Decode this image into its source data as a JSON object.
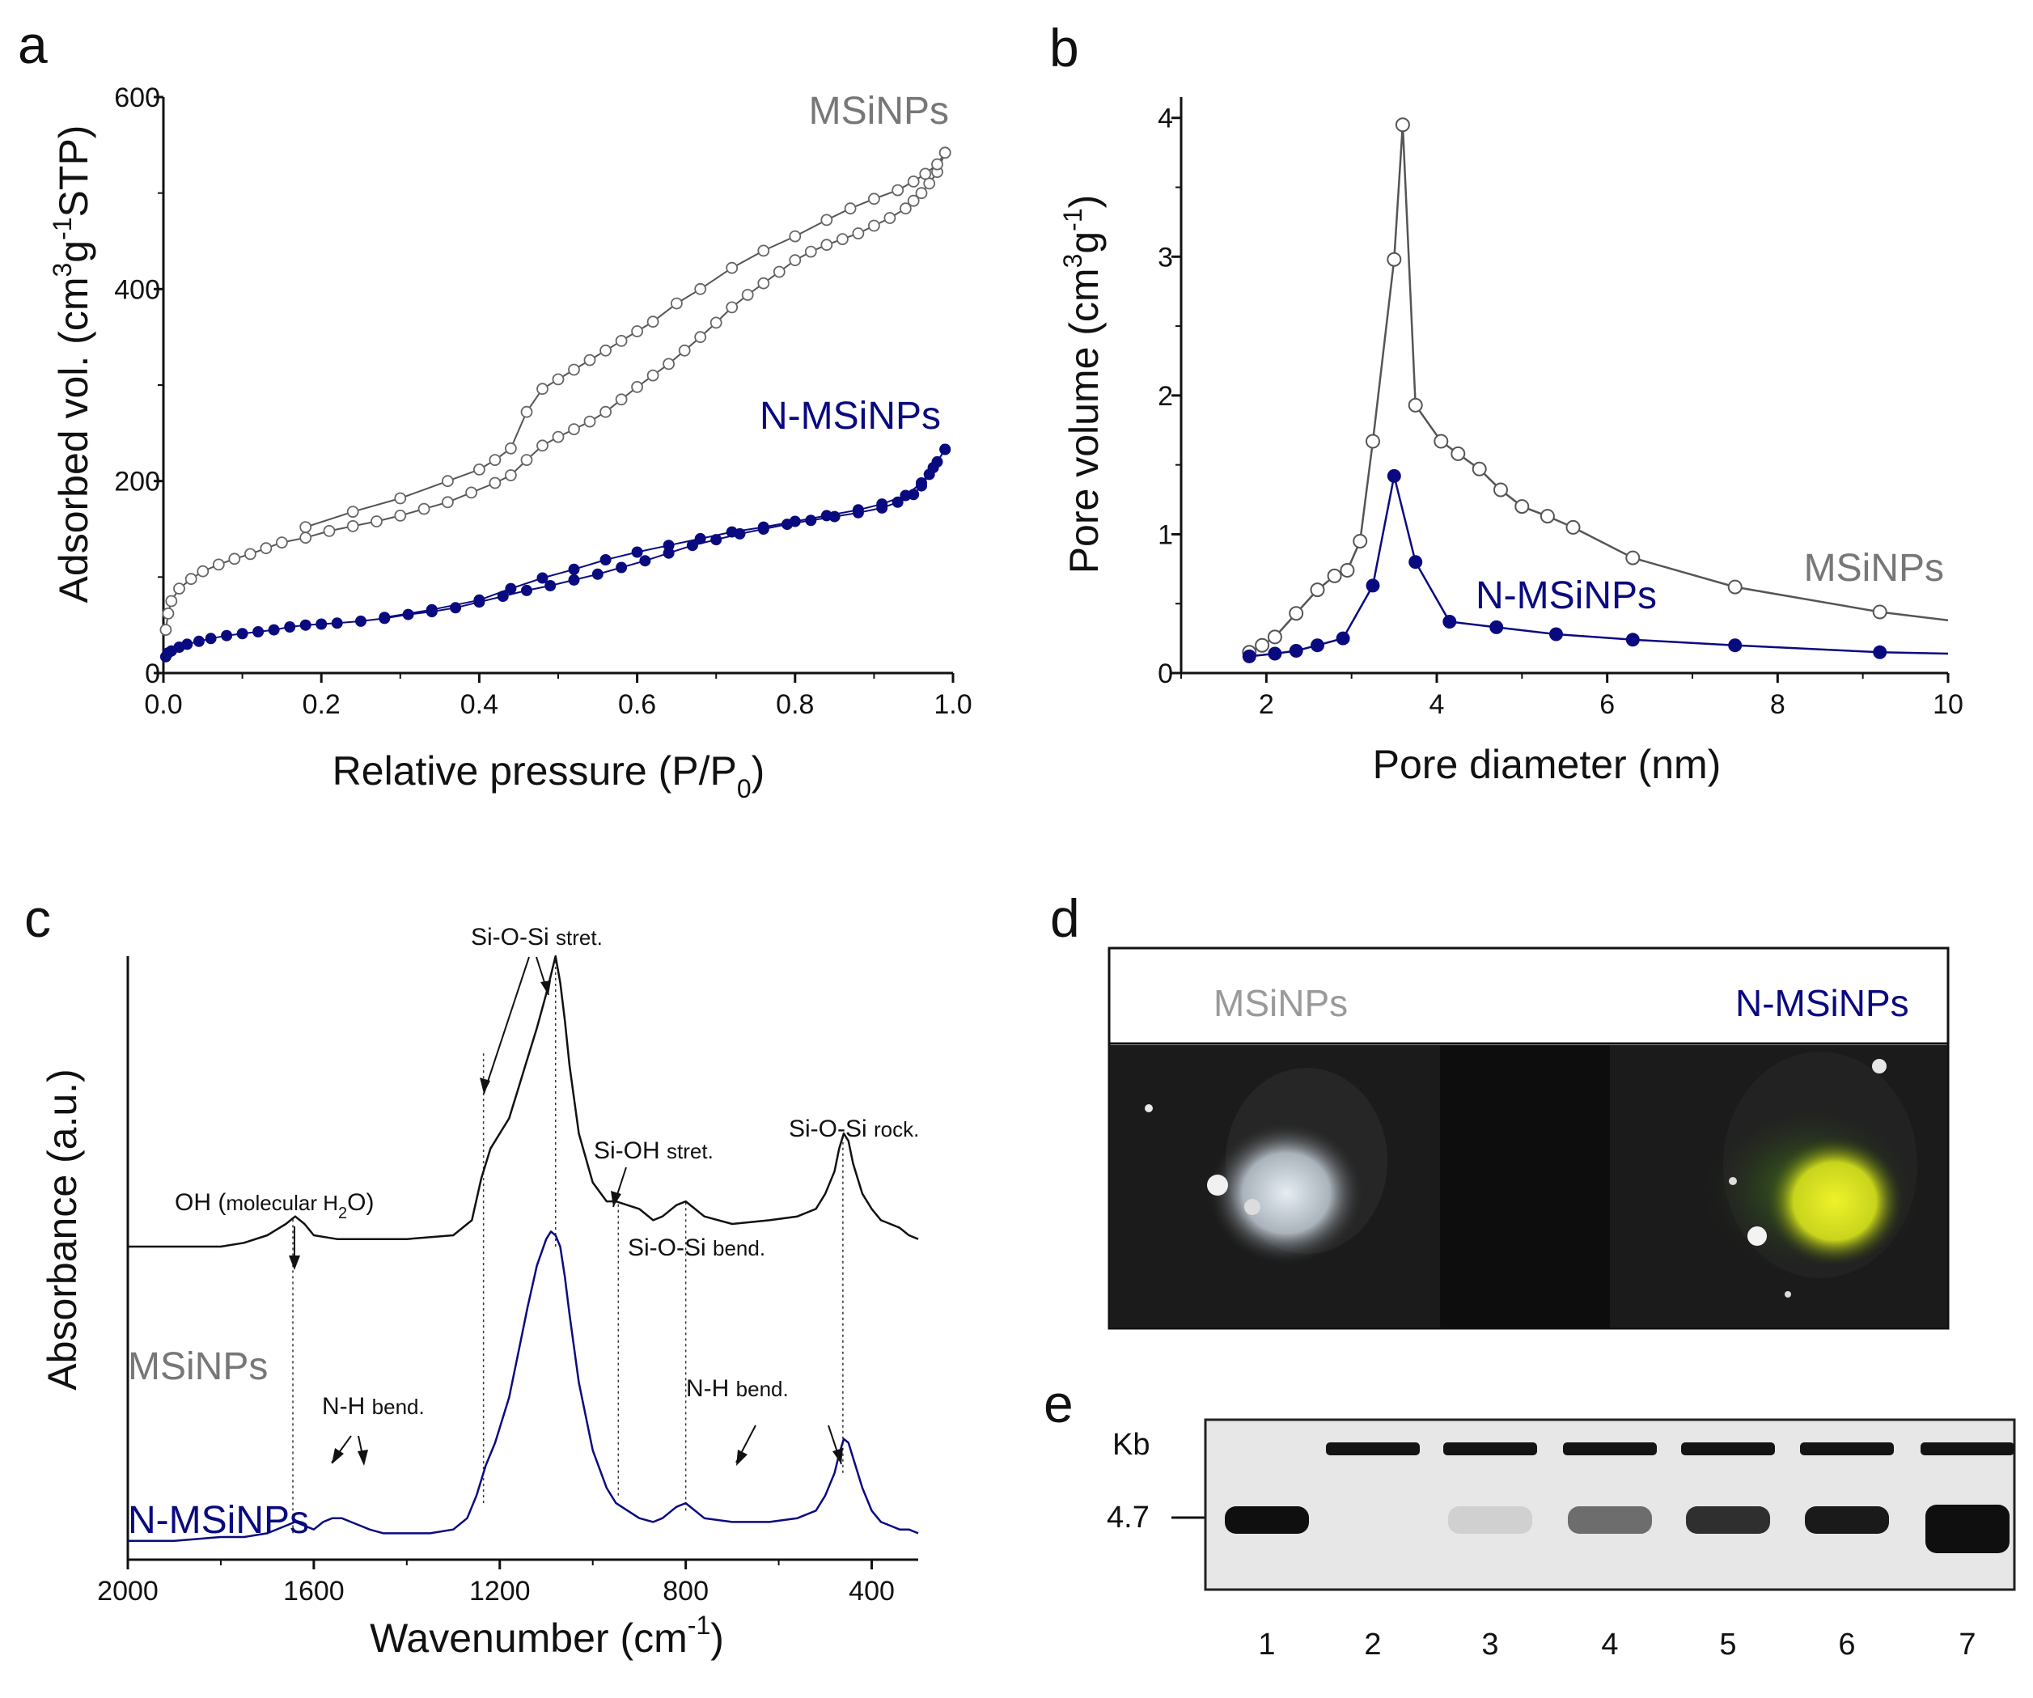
{
  "colors": {
    "msinp": "#777777",
    "nmsinp": "#0a0a80",
    "axis": "#111111",
    "gel_bg": "#e7e7e7",
    "band": "#141414",
    "nanoparticles_white": "#dfe6ec",
    "nanoparticles_yellow": "#e4ec1c"
  },
  "panels": {
    "a": {
      "label": "a"
    },
    "b": {
      "label": "b"
    },
    "c": {
      "label": "c"
    },
    "d": {
      "label": "d",
      "left_label": "MSiNPs",
      "right_label": "N-MSiNPs"
    },
    "e": {
      "label": "e",
      "kb_label": "Kb",
      "marker_label": "4.7",
      "lanes": [
        "1",
        "2",
        "3",
        "4",
        "5",
        "6",
        "7"
      ],
      "band_intensity": [
        1.0,
        0.0,
        0.08,
        0.55,
        0.85,
        0.95,
        1.0
      ]
    }
  },
  "chart_data": [
    {
      "id": "a",
      "type": "scatter",
      "title": "",
      "xlabel": "Relative pressure (P/P",
      "xlabel_sub": "0",
      "xlabel_end": ")",
      "ylabel_parts": [
        "Adsorbed vol. (cm",
        "3",
        "g",
        "-1",
        "STP)"
      ],
      "xlim": [
        0,
        1.0
      ],
      "ylim": [
        0,
        600
      ],
      "xticks": [
        "0.0",
        "0.2",
        "0.4",
        "0.6",
        "0.8",
        "1.0"
      ],
      "yticks": [
        "0",
        "200",
        "400",
        "600"
      ],
      "series": [
        {
          "name": "MSiNPs",
          "marker": "open-circle",
          "adsorption": [
            [
              0.003,
              45
            ],
            [
              0.006,
              62
            ],
            [
              0.01,
              75
            ],
            [
              0.02,
              88
            ],
            [
              0.035,
              98
            ],
            [
              0.05,
              106
            ],
            [
              0.07,
              113
            ],
            [
              0.09,
              119
            ],
            [
              0.11,
              124
            ],
            [
              0.13,
              130
            ],
            [
              0.15,
              136
            ],
            [
              0.18,
              141
            ],
            [
              0.21,
              148
            ],
            [
              0.24,
              153
            ],
            [
              0.27,
              158
            ],
            [
              0.3,
              164
            ],
            [
              0.33,
              171
            ],
            [
              0.36,
              178
            ],
            [
              0.39,
              188
            ],
            [
              0.42,
              198
            ],
            [
              0.44,
              206
            ],
            [
              0.46,
              222
            ],
            [
              0.48,
              237
            ],
            [
              0.5,
              246
            ],
            [
              0.52,
              254
            ],
            [
              0.54,
              262
            ],
            [
              0.56,
              272
            ],
            [
              0.58,
              285
            ],
            [
              0.6,
              298
            ],
            [
              0.62,
              310
            ],
            [
              0.64,
              322
            ],
            [
              0.66,
              336
            ],
            [
              0.68,
              350
            ],
            [
              0.7,
              365
            ],
            [
              0.72,
              381
            ],
            [
              0.74,
              394
            ],
            [
              0.76,
              406
            ],
            [
              0.78,
              418
            ],
            [
              0.8,
              430
            ],
            [
              0.82,
              439
            ],
            [
              0.84,
              446
            ],
            [
              0.86,
              452
            ],
            [
              0.88,
              458
            ],
            [
              0.9,
              466
            ],
            [
              0.92,
              474
            ],
            [
              0.94,
              484
            ],
            [
              0.95,
              492
            ],
            [
              0.96,
              500
            ],
            [
              0.97,
              510
            ],
            [
              0.98,
              522
            ],
            [
              0.99,
              542
            ]
          ],
          "desorption": [
            [
              0.99,
              542
            ],
            [
              0.98,
              530
            ],
            [
              0.965,
              520
            ],
            [
              0.95,
              512
            ],
            [
              0.93,
              503
            ],
            [
              0.9,
              494
            ],
            [
              0.87,
              484
            ],
            [
              0.84,
              472
            ],
            [
              0.8,
              455
            ],
            [
              0.76,
              440
            ],
            [
              0.72,
              422
            ],
            [
              0.68,
              400
            ],
            [
              0.65,
              385
            ],
            [
              0.62,
              366
            ],
            [
              0.6,
              356
            ],
            [
              0.58,
              346
            ],
            [
              0.56,
              336
            ],
            [
              0.54,
              326
            ],
            [
              0.52,
              316
            ],
            [
              0.5,
              306
            ],
            [
              0.48,
              296
            ],
            [
              0.46,
              272
            ],
            [
              0.44,
              234
            ],
            [
              0.42,
              222
            ],
            [
              0.4,
              212
            ],
            [
              0.36,
              200
            ],
            [
              0.3,
              182
            ],
            [
              0.24,
              168
            ],
            [
              0.18,
              152
            ]
          ]
        },
        {
          "name": "N-MSiNPs",
          "marker": "filled-circle",
          "adsorption": [
            [
              0.003,
              17
            ],
            [
              0.006,
              21
            ],
            [
              0.01,
              23
            ],
            [
              0.02,
              27
            ],
            [
              0.03,
              30
            ],
            [
              0.045,
              33
            ],
            [
              0.06,
              36
            ],
            [
              0.08,
              39
            ],
            [
              0.1,
              41
            ],
            [
              0.12,
              43
            ],
            [
              0.14,
              45
            ],
            [
              0.16,
              48
            ],
            [
              0.18,
              50
            ],
            [
              0.2,
              51
            ],
            [
              0.22,
              52
            ],
            [
              0.25,
              54
            ],
            [
              0.28,
              57
            ],
            [
              0.31,
              61
            ],
            [
              0.34,
              64
            ],
            [
              0.37,
              68
            ],
            [
              0.4,
              74
            ],
            [
              0.43,
              80
            ],
            [
              0.46,
              86
            ],
            [
              0.49,
              91
            ],
            [
              0.52,
              97
            ],
            [
              0.55,
              103
            ],
            [
              0.58,
              110
            ],
            [
              0.61,
              117
            ],
            [
              0.64,
              125
            ],
            [
              0.67,
              133
            ],
            [
              0.7,
              139
            ],
            [
              0.73,
              145
            ],
            [
              0.76,
              150
            ],
            [
              0.79,
              155
            ],
            [
              0.82,
              159
            ],
            [
              0.85,
              163
            ],
            [
              0.88,
              167
            ],
            [
              0.91,
              172
            ],
            [
              0.93,
              178
            ],
            [
              0.95,
              186
            ],
            [
              0.96,
              195
            ],
            [
              0.97,
              207
            ],
            [
              0.98,
              220
            ],
            [
              0.99,
              233
            ]
          ],
          "desorption": [
            [
              0.99,
              233
            ],
            [
              0.975,
              214
            ],
            [
              0.96,
              198
            ],
            [
              0.94,
              185
            ],
            [
              0.91,
              176
            ],
            [
              0.88,
              170
            ],
            [
              0.84,
              164
            ],
            [
              0.8,
              158
            ],
            [
              0.76,
              152
            ],
            [
              0.72,
              147
            ],
            [
              0.68,
              140
            ],
            [
              0.64,
              133
            ],
            [
              0.6,
              126
            ],
            [
              0.56,
              118
            ],
            [
              0.52,
              108
            ],
            [
              0.48,
              99
            ],
            [
              0.44,
              88
            ],
            [
              0.4,
              76
            ],
            [
              0.34,
              66
            ],
            [
              0.28,
              58
            ]
          ]
        }
      ]
    },
    {
      "id": "b",
      "type": "line",
      "title": "",
      "xlabel": "Pore diameter (nm)",
      "ylabel_parts": [
        "Pore volume (cm",
        "3",
        "g",
        "-1",
        ")"
      ],
      "xlim": [
        1,
        10
      ],
      "ylim": [
        0,
        4.15
      ],
      "xticks": [
        "2",
        "4",
        "6",
        "8",
        "10"
      ],
      "yticks": [
        "0",
        "1",
        "2",
        "3",
        "4"
      ],
      "series": [
        {
          "name": "MSiNPs",
          "marker": "open-circle",
          "x": [
            1.8,
            1.95,
            2.1,
            2.35,
            2.6,
            2.8,
            2.95,
            3.1,
            3.25,
            3.5,
            3.6,
            3.75,
            4.05,
            4.25,
            4.5,
            4.75,
            5.0,
            5.3,
            5.6,
            6.3,
            7.5,
            9.2,
            10.0
          ],
          "y": [
            0.15,
            0.2,
            0.26,
            0.43,
            0.6,
            0.7,
            0.74,
            0.95,
            1.67,
            2.98,
            3.95,
            1.93,
            1.67,
            1.58,
            1.47,
            1.32,
            1.2,
            1.13,
            1.05,
            0.83,
            0.62,
            0.44,
            0.38
          ]
        },
        {
          "name": "N-MSiNPs",
          "marker": "filled-circle",
          "x": [
            1.8,
            2.1,
            2.35,
            2.6,
            2.9,
            3.25,
            3.5,
            3.75,
            4.15,
            4.7,
            5.4,
            6.3,
            7.5,
            9.2,
            10.0
          ],
          "y": [
            0.12,
            0.14,
            0.16,
            0.2,
            0.25,
            0.63,
            1.42,
            0.8,
            0.37,
            0.33,
            0.28,
            0.24,
            0.2,
            0.15,
            0.14
          ]
        }
      ]
    },
    {
      "id": "c",
      "type": "line",
      "title": "",
      "xlabel": "Wavenumber (cm",
      "xlabel_sup": "-1",
      "xlabel_end": ")",
      "ylabel": "Absorbance (a.u.)",
      "xlim": [
        2000,
        300
      ],
      "ylim": [
        -0.05,
        1.55
      ],
      "xticks": [
        "2000",
        "1600",
        "1200",
        "800",
        "400"
      ],
      "series": [
        {
          "name": "MSiNPs",
          "x": [
            2000,
            1900,
            1800,
            1750,
            1700,
            1660,
            1640,
            1620,
            1600,
            1550,
            1500,
            1400,
            1300,
            1260,
            1240,
            1220,
            1200,
            1180,
            1160,
            1140,
            1120,
            1100,
            1090,
            1080,
            1070,
            1060,
            1050,
            1030,
            1000,
            970,
            950,
            900,
            870,
            850,
            820,
            800,
            780,
            760,
            700,
            620,
            560,
            520,
            500,
            480,
            470,
            460,
            450,
            440,
            420,
            400,
            380,
            360,
            340,
            320,
            300
          ],
          "y": [
            0.78,
            0.78,
            0.78,
            0.79,
            0.81,
            0.84,
            0.86,
            0.84,
            0.81,
            0.8,
            0.8,
            0.8,
            0.81,
            0.85,
            0.96,
            1.04,
            1.08,
            1.12,
            1.2,
            1.28,
            1.36,
            1.45,
            1.5,
            1.55,
            1.48,
            1.38,
            1.26,
            1.08,
            0.95,
            0.9,
            0.9,
            0.88,
            0.85,
            0.86,
            0.89,
            0.9,
            0.88,
            0.86,
            0.84,
            0.85,
            0.86,
            0.88,
            0.92,
            0.98,
            1.04,
            1.08,
            1.06,
            1.0,
            0.92,
            0.88,
            0.85,
            0.84,
            0.83,
            0.81,
            0.8
          ]
        },
        {
          "name": "N-MSiNPs",
          "x": [
            2000,
            1900,
            1800,
            1750,
            1700,
            1660,
            1640,
            1620,
            1600,
            1580,
            1560,
            1540,
            1520,
            1500,
            1480,
            1450,
            1400,
            1350,
            1300,
            1270,
            1250,
            1230,
            1210,
            1200,
            1180,
            1160,
            1140,
            1120,
            1100,
            1090,
            1080,
            1070,
            1060,
            1050,
            1030,
            1000,
            970,
            950,
            900,
            870,
            850,
            820,
            800,
            780,
            760,
            700,
            620,
            560,
            520,
            500,
            480,
            470,
            460,
            450,
            440,
            420,
            400,
            380,
            360,
            340,
            320,
            300
          ],
          "y": [
            0.0,
            0.0,
            0.01,
            0.01,
            0.02,
            0.04,
            0.05,
            0.04,
            0.03,
            0.05,
            0.06,
            0.06,
            0.05,
            0.04,
            0.03,
            0.02,
            0.02,
            0.02,
            0.03,
            0.06,
            0.12,
            0.2,
            0.26,
            0.3,
            0.38,
            0.5,
            0.62,
            0.73,
            0.8,
            0.82,
            0.81,
            0.78,
            0.7,
            0.6,
            0.42,
            0.24,
            0.14,
            0.1,
            0.06,
            0.05,
            0.06,
            0.09,
            0.1,
            0.08,
            0.06,
            0.05,
            0.05,
            0.06,
            0.08,
            0.12,
            0.18,
            0.23,
            0.27,
            0.26,
            0.22,
            0.14,
            0.08,
            0.05,
            0.04,
            0.03,
            0.03,
            0.02
          ]
        }
      ],
      "annotations": {
        "oh": "OH (",
        "oh_small": "molecular H",
        "oh_sub": "2",
        "oh_end": "O)",
        "sios_stret": "Si-O-Si",
        "sios_stret_small": "stret.",
        "sioh_stret": "Si-OH",
        "sioh_stret_small": "stret.",
        "sios_bend": "Si-O-Si",
        "sios_bend_small": "bend.",
        "sios_rock": "Si-O-Si",
        "sios_rock_small": "rock.",
        "nh_bend_1": "N-H",
        "nh_bend_1_small": "bend.",
        "nh_bend_2": "N-H",
        "nh_bend_2_small": "bend."
      }
    }
  ]
}
